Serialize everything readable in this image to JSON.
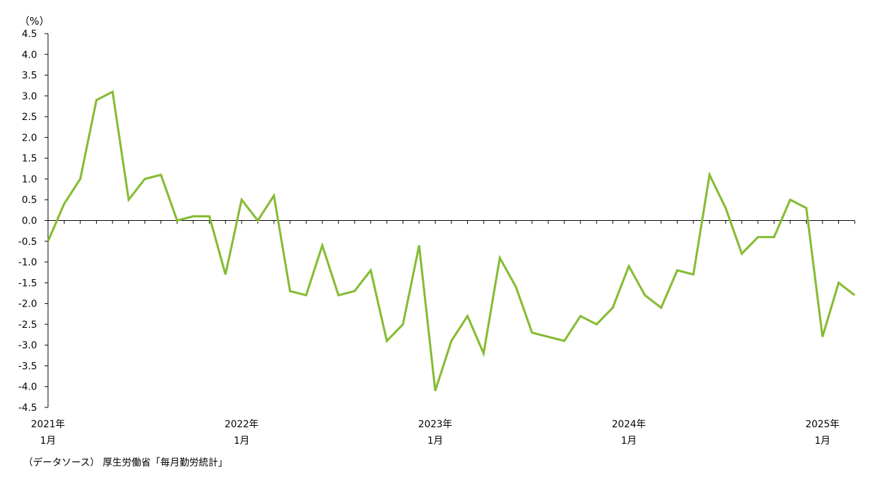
{
  "chart_data": {
    "type": "line",
    "unit_label": "（%）",
    "ylim": [
      -4.5,
      4.5
    ],
    "y_ticks": [
      "4.5",
      "4.0",
      "3.5",
      "3.0",
      "2.5",
      "2.0",
      "1.5",
      "1.0",
      "0.5",
      "0.0",
      "-0.5",
      "-1.0",
      "-1.5",
      "-2.0",
      "-2.5",
      "-3.0",
      "-3.5",
      "-4.0",
      "-4.5"
    ],
    "x_labels": [
      {
        "index": 0,
        "year": "2021年",
        "month": "1月"
      },
      {
        "index": 12,
        "year": "2022年",
        "month": "1月"
      },
      {
        "index": 24,
        "year": "2023年",
        "month": "1月"
      },
      {
        "index": 36,
        "year": "2024年",
        "month": "1月"
      },
      {
        "index": 48,
        "year": "2025年",
        "month": "1月"
      }
    ],
    "series": [
      {
        "color": "#86bc34",
        "values": [
          -0.5,
          0.4,
          1.0,
          2.9,
          3.1,
          0.5,
          1.0,
          1.1,
          0.0,
          0.1,
          0.1,
          -1.3,
          0.5,
          0.0,
          0.6,
          -1.7,
          -1.8,
          -0.6,
          -1.8,
          -1.7,
          -1.2,
          -2.9,
          -2.5,
          -0.6,
          -4.1,
          -2.9,
          -2.3,
          -3.2,
          -0.9,
          -1.6,
          -2.7,
          -2.8,
          -2.9,
          -2.3,
          -2.5,
          -2.1,
          -1.1,
          -1.8,
          -2.1,
          -1.2,
          -1.3,
          1.1,
          0.3,
          -0.8,
          -0.4,
          -0.4,
          0.5,
          0.3,
          -2.8,
          -1.5,
          -1.8
        ]
      }
    ],
    "grid": false
  },
  "source_text": "（データソース） 厚生労働省「毎月勤労統計」"
}
